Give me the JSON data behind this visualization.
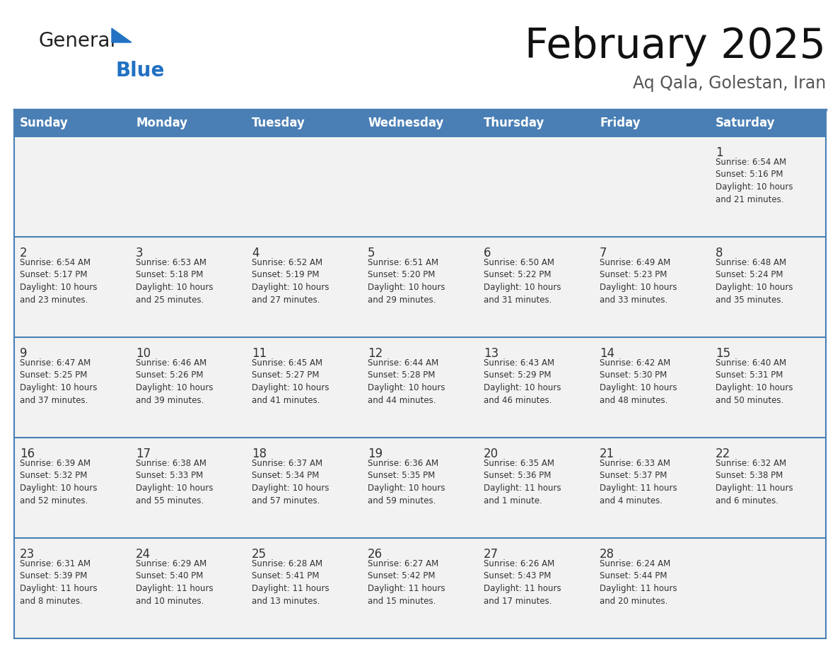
{
  "title": "February 2025",
  "subtitle": "Aq Qala, Golestan, Iran",
  "days_of_week": [
    "Sunday",
    "Monday",
    "Tuesday",
    "Wednesday",
    "Thursday",
    "Friday",
    "Saturday"
  ],
  "header_bg": "#4a7fb5",
  "header_text": "#ffffff",
  "row_bg": "#f2f2f2",
  "cell_text_color": "#333333",
  "day_num_color": "#333333",
  "border_color": "#4a7fb5",
  "row_divider_color": "#4a7fb5",
  "title_color": "#111111",
  "subtitle_color": "#555555",
  "calendar": [
    [
      {
        "day": "",
        "info": ""
      },
      {
        "day": "",
        "info": ""
      },
      {
        "day": "",
        "info": ""
      },
      {
        "day": "",
        "info": ""
      },
      {
        "day": "",
        "info": ""
      },
      {
        "day": "",
        "info": ""
      },
      {
        "day": "1",
        "info": "Sunrise: 6:54 AM\nSunset: 5:16 PM\nDaylight: 10 hours\nand 21 minutes."
      }
    ],
    [
      {
        "day": "2",
        "info": "Sunrise: 6:54 AM\nSunset: 5:17 PM\nDaylight: 10 hours\nand 23 minutes."
      },
      {
        "day": "3",
        "info": "Sunrise: 6:53 AM\nSunset: 5:18 PM\nDaylight: 10 hours\nand 25 minutes."
      },
      {
        "day": "4",
        "info": "Sunrise: 6:52 AM\nSunset: 5:19 PM\nDaylight: 10 hours\nand 27 minutes."
      },
      {
        "day": "5",
        "info": "Sunrise: 6:51 AM\nSunset: 5:20 PM\nDaylight: 10 hours\nand 29 minutes."
      },
      {
        "day": "6",
        "info": "Sunrise: 6:50 AM\nSunset: 5:22 PM\nDaylight: 10 hours\nand 31 minutes."
      },
      {
        "day": "7",
        "info": "Sunrise: 6:49 AM\nSunset: 5:23 PM\nDaylight: 10 hours\nand 33 minutes."
      },
      {
        "day": "8",
        "info": "Sunrise: 6:48 AM\nSunset: 5:24 PM\nDaylight: 10 hours\nand 35 minutes."
      }
    ],
    [
      {
        "day": "9",
        "info": "Sunrise: 6:47 AM\nSunset: 5:25 PM\nDaylight: 10 hours\nand 37 minutes."
      },
      {
        "day": "10",
        "info": "Sunrise: 6:46 AM\nSunset: 5:26 PM\nDaylight: 10 hours\nand 39 minutes."
      },
      {
        "day": "11",
        "info": "Sunrise: 6:45 AM\nSunset: 5:27 PM\nDaylight: 10 hours\nand 41 minutes."
      },
      {
        "day": "12",
        "info": "Sunrise: 6:44 AM\nSunset: 5:28 PM\nDaylight: 10 hours\nand 44 minutes."
      },
      {
        "day": "13",
        "info": "Sunrise: 6:43 AM\nSunset: 5:29 PM\nDaylight: 10 hours\nand 46 minutes."
      },
      {
        "day": "14",
        "info": "Sunrise: 6:42 AM\nSunset: 5:30 PM\nDaylight: 10 hours\nand 48 minutes."
      },
      {
        "day": "15",
        "info": "Sunrise: 6:40 AM\nSunset: 5:31 PM\nDaylight: 10 hours\nand 50 minutes."
      }
    ],
    [
      {
        "day": "16",
        "info": "Sunrise: 6:39 AM\nSunset: 5:32 PM\nDaylight: 10 hours\nand 52 minutes."
      },
      {
        "day": "17",
        "info": "Sunrise: 6:38 AM\nSunset: 5:33 PM\nDaylight: 10 hours\nand 55 minutes."
      },
      {
        "day": "18",
        "info": "Sunrise: 6:37 AM\nSunset: 5:34 PM\nDaylight: 10 hours\nand 57 minutes."
      },
      {
        "day": "19",
        "info": "Sunrise: 6:36 AM\nSunset: 5:35 PM\nDaylight: 10 hours\nand 59 minutes."
      },
      {
        "day": "20",
        "info": "Sunrise: 6:35 AM\nSunset: 5:36 PM\nDaylight: 11 hours\nand 1 minute."
      },
      {
        "day": "21",
        "info": "Sunrise: 6:33 AM\nSunset: 5:37 PM\nDaylight: 11 hours\nand 4 minutes."
      },
      {
        "day": "22",
        "info": "Sunrise: 6:32 AM\nSunset: 5:38 PM\nDaylight: 11 hours\nand 6 minutes."
      }
    ],
    [
      {
        "day": "23",
        "info": "Sunrise: 6:31 AM\nSunset: 5:39 PM\nDaylight: 11 hours\nand 8 minutes."
      },
      {
        "day": "24",
        "info": "Sunrise: 6:29 AM\nSunset: 5:40 PM\nDaylight: 11 hours\nand 10 minutes."
      },
      {
        "day": "25",
        "info": "Sunrise: 6:28 AM\nSunset: 5:41 PM\nDaylight: 11 hours\nand 13 minutes."
      },
      {
        "day": "26",
        "info": "Sunrise: 6:27 AM\nSunset: 5:42 PM\nDaylight: 11 hours\nand 15 minutes."
      },
      {
        "day": "27",
        "info": "Sunrise: 6:26 AM\nSunset: 5:43 PM\nDaylight: 11 hours\nand 17 minutes."
      },
      {
        "day": "28",
        "info": "Sunrise: 6:24 AM\nSunset: 5:44 PM\nDaylight: 11 hours\nand 20 minutes."
      },
      {
        "day": "",
        "info": ""
      }
    ]
  ],
  "logo_text_general": "General",
  "logo_text_blue": "Blue",
  "logo_general_color": "#222222",
  "logo_blue_color": "#2271c3",
  "logo_triangle_color": "#2271c3"
}
